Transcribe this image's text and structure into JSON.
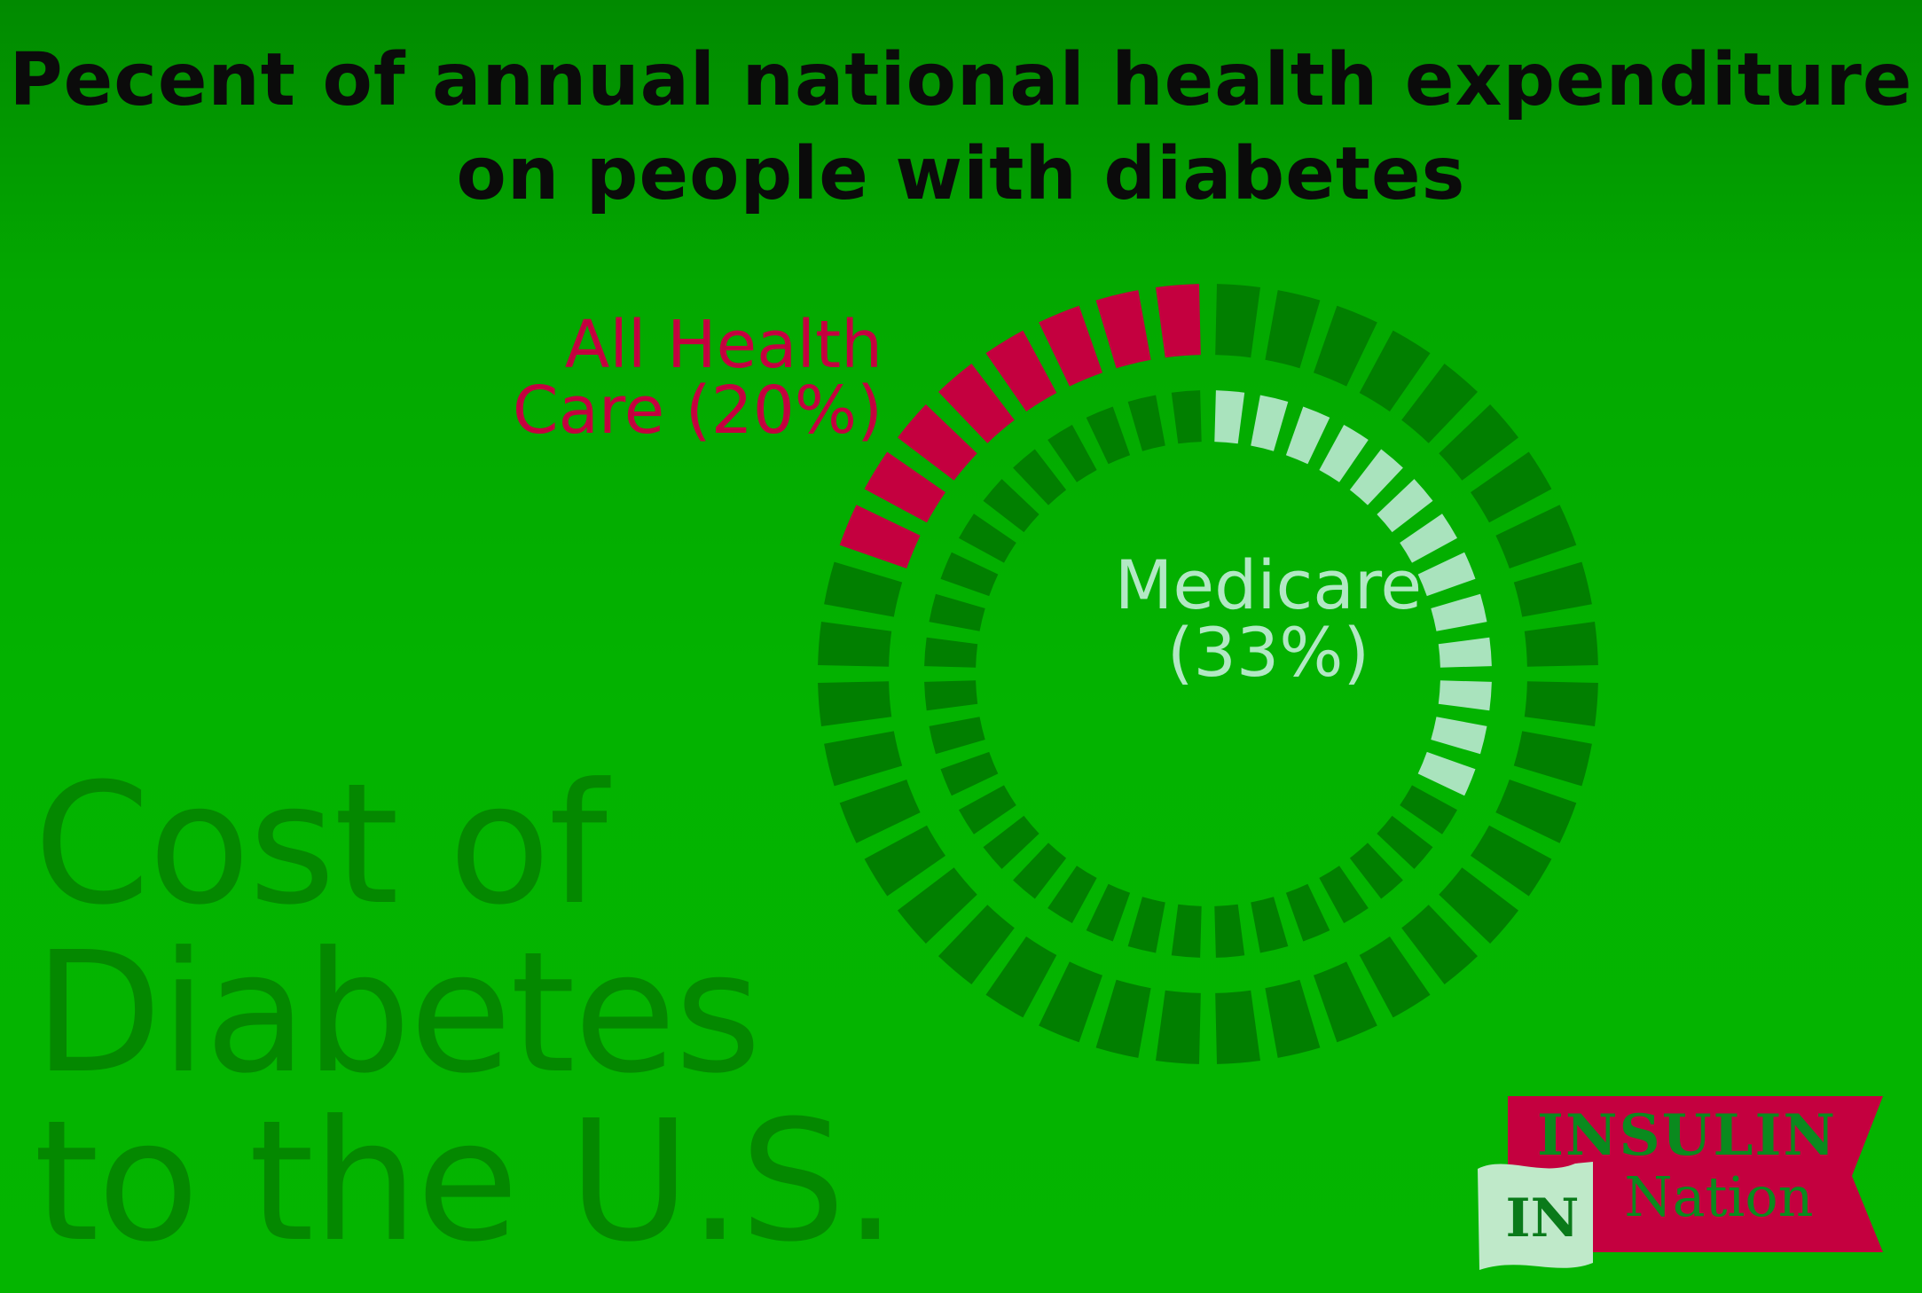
{
  "title_lines": [
    "Pecent of annual national health expenditure",
    "on people with diabetes"
  ],
  "headline_lines": [
    "Cost of",
    "Diabetes",
    "to the U.S."
  ],
  "chart_data": {
    "type": "donut",
    "series": [
      {
        "name": "All Health Care (20%)",
        "value": 20,
        "ring": "outer",
        "direction": "counterclockwise",
        "color": "#c4003f"
      },
      {
        "name": "Medicare (33%)",
        "value": 33,
        "ring": "inner",
        "direction": "clockwise",
        "color": "#a9e3bd"
      }
    ],
    "segments_outer": 40,
    "segments_inner": 40,
    "track_color": "#017f00"
  },
  "labels": {
    "outer_lines": [
      "All Health",
      "Care (20%)"
    ],
    "inner_lines": [
      "Medicare",
      "(33%)"
    ]
  },
  "logo": {
    "top": "INSULIN",
    "bottom": "Nation",
    "mark": "IN",
    "ribbon_color": "#c4003f",
    "text_color": "#0a8a1e"
  },
  "colors": {
    "background": "#03b300",
    "title": "#0b0b0b",
    "headline": "#048800"
  }
}
